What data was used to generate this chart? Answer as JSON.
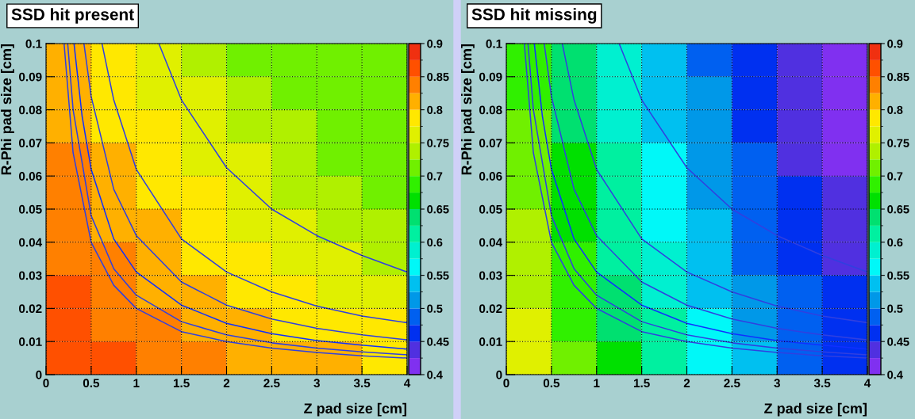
{
  "chart_data": [
    {
      "type": "heatmap",
      "title": "SSD hit present",
      "xlabel": "Z pad size [cm]",
      "ylabel": "R-Phi pad size [cm]",
      "cells": [
        [
          0.81,
          0.79,
          0.76,
          0.74,
          0.71,
          0.71,
          0.71,
          0.71
        ],
        [
          0.81,
          0.79,
          0.76,
          0.76,
          0.74,
          0.71,
          0.71,
          0.71
        ],
        [
          0.81,
          0.79,
          0.79,
          0.76,
          0.74,
          0.74,
          0.71,
          0.71
        ],
        [
          0.84,
          0.81,
          0.79,
          0.76,
          0.76,
          0.74,
          0.71,
          0.71
        ],
        [
          0.84,
          0.81,
          0.79,
          0.79,
          0.76,
          0.74,
          0.74,
          0.71
        ],
        [
          0.84,
          0.81,
          0.81,
          0.79,
          0.76,
          0.76,
          0.74,
          0.74
        ],
        [
          0.84,
          0.84,
          0.81,
          0.79,
          0.79,
          0.76,
          0.76,
          0.74
        ],
        [
          0.86,
          0.84,
          0.81,
          0.81,
          0.79,
          0.79,
          0.76,
          0.76
        ],
        [
          0.86,
          0.84,
          0.84,
          0.81,
          0.81,
          0.79,
          0.79,
          0.79
        ],
        [
          0.86,
          0.86,
          0.84,
          0.84,
          0.81,
          0.81,
          0.81,
          0.79
        ]
      ],
      "colors": [
        "#8030f0",
        "#5030e0",
        "#0030f0",
        "#0060f0",
        "#0098e8",
        "#00c0f0",
        "#00f8f8",
        "#00f0d0",
        "#00f0a0",
        "#00e070",
        "#00e000",
        "#30f000",
        "#70f000",
        "#b0f000",
        "#e0f000",
        "#ffe800",
        "#ffb000",
        "#ff8000",
        "#ff5000",
        "#f03010"
      ],
      "clim": [
        0.4,
        0.9
      ],
      "cticks": [
        0.4,
        0.45,
        0.5,
        0.55,
        0.6,
        0.65,
        0.7,
        0.75,
        0.8,
        0.85,
        0.9
      ],
      "xlim": [
        0,
        4
      ],
      "ylim": [
        0,
        0.1
      ],
      "xticks": [
        0,
        0.5,
        1,
        1.5,
        2,
        2.5,
        3,
        3.5,
        4
      ],
      "yticks": [
        0,
        0.01,
        0.02,
        0.03,
        0.04,
        0.05,
        0.06,
        0.07,
        0.08,
        0.09,
        0.1
      ],
      "grid": true,
      "series": [
        {
          "type": "line",
          "color": "#3040e0",
          "x": [
            0.2,
            0.3,
            0.5,
            0.75,
            1,
            1.5,
            2,
            2.5,
            3,
            3.5,
            4
          ],
          "values": [
            0.1,
            0.067,
            0.04,
            0.027,
            0.02,
            0.013,
            0.01,
            0.008,
            0.0067,
            0.0057,
            0.005
          ]
        },
        {
          "type": "line",
          "color": "#3040e0",
          "x": [
            0.24,
            0.3,
            0.5,
            0.75,
            1,
            1.5,
            2,
            2.5,
            3,
            3.5,
            4
          ],
          "values": [
            0.1,
            0.08,
            0.048,
            0.032,
            0.024,
            0.016,
            0.012,
            0.0096,
            0.008,
            0.0069,
            0.006
          ]
        },
        {
          "type": "line",
          "color": "#1030ff",
          "x": [
            0.31,
            0.4,
            0.5,
            0.75,
            1,
            1.5,
            2,
            2.5,
            3,
            3.5,
            4
          ],
          "values": [
            0.1,
            0.078,
            0.062,
            0.041,
            0.031,
            0.021,
            0.0155,
            0.0124,
            0.0103,
            0.0089,
            0.0077
          ]
        },
        {
          "type": "line",
          "color": "#3040e0",
          "x": [
            0.42,
            0.5,
            0.75,
            1,
            1.5,
            2,
            2.5,
            3,
            3.5,
            4
          ],
          "values": [
            0.1,
            0.084,
            0.056,
            0.042,
            0.028,
            0.021,
            0.0168,
            0.014,
            0.012,
            0.0105
          ]
        },
        {
          "type": "line",
          "color": "#3040e0",
          "x": [
            0.62,
            0.75,
            1,
            1.5,
            2,
            2.5,
            3,
            3.5,
            4
          ],
          "values": [
            0.1,
            0.083,
            0.062,
            0.041,
            0.031,
            0.025,
            0.0207,
            0.0177,
            0.0157
          ]
        },
        {
          "type": "line",
          "color": "#3040e0",
          "x": [
            1.25,
            1.5,
            2,
            2.5,
            3,
            3.5,
            4
          ],
          "values": [
            0.1,
            0.083,
            0.0625,
            0.05,
            0.042,
            0.036,
            0.031
          ]
        }
      ]
    },
    {
      "type": "heatmap",
      "title": "SSD hit missing",
      "xlabel": "Z pad size [cm]",
      "ylabel": "R-Phi pad size [cm]",
      "cells": [
        [
          0.69,
          0.64,
          0.59,
          0.54,
          0.49,
          0.46,
          0.44,
          0.41
        ],
        [
          0.69,
          0.64,
          0.59,
          0.54,
          0.51,
          0.46,
          0.44,
          0.41
        ],
        [
          0.71,
          0.64,
          0.59,
          0.54,
          0.51,
          0.46,
          0.44,
          0.41
        ],
        [
          0.71,
          0.66,
          0.61,
          0.56,
          0.51,
          0.49,
          0.44,
          0.41
        ],
        [
          0.71,
          0.66,
          0.61,
          0.56,
          0.51,
          0.49,
          0.46,
          0.44
        ],
        [
          0.74,
          0.66,
          0.61,
          0.56,
          0.54,
          0.49,
          0.46,
          0.44
        ],
        [
          0.74,
          0.69,
          0.61,
          0.59,
          0.54,
          0.49,
          0.46,
          0.44
        ],
        [
          0.74,
          0.69,
          0.64,
          0.59,
          0.54,
          0.51,
          0.49,
          0.46
        ],
        [
          0.76,
          0.69,
          0.64,
          0.61,
          0.56,
          0.51,
          0.49,
          0.46
        ],
        [
          0.76,
          0.71,
          0.66,
          0.61,
          0.56,
          0.54,
          0.49,
          0.46
        ]
      ],
      "colors": [
        "#8030f0",
        "#5030e0",
        "#0030f0",
        "#0060f0",
        "#0098e8",
        "#00c0f0",
        "#00f8f8",
        "#00f0d0",
        "#00f0a0",
        "#00e070",
        "#00e000",
        "#30f000",
        "#70f000",
        "#b0f000",
        "#e0f000",
        "#ffe800",
        "#ffb000",
        "#ff8000",
        "#ff5000",
        "#f03010"
      ],
      "clim": [
        0.4,
        0.9
      ],
      "cticks": [
        0.4,
        0.45,
        0.5,
        0.55,
        0.6,
        0.65,
        0.7,
        0.75,
        0.8,
        0.85,
        0.9
      ],
      "xlim": [
        0,
        4
      ],
      "ylim": [
        0,
        0.1
      ],
      "xticks": [
        0,
        0.5,
        1,
        1.5,
        2,
        2.5,
        3,
        3.5,
        4
      ],
      "yticks": [
        0,
        0.01,
        0.02,
        0.03,
        0.04,
        0.05,
        0.06,
        0.07,
        0.08,
        0.09,
        0.1
      ],
      "grid": true,
      "series": [
        {
          "type": "line",
          "color": "#3040e0",
          "x": [
            0.2,
            0.3,
            0.5,
            0.75,
            1,
            1.5,
            2,
            2.5,
            3,
            3.5,
            4
          ],
          "values": [
            0.1,
            0.067,
            0.04,
            0.027,
            0.02,
            0.013,
            0.01,
            0.008,
            0.0067,
            0.0057,
            0.005
          ]
        },
        {
          "type": "line",
          "color": "#3040e0",
          "x": [
            0.24,
            0.3,
            0.5,
            0.75,
            1,
            1.5,
            2,
            2.5,
            3,
            3.5,
            4
          ],
          "values": [
            0.1,
            0.08,
            0.048,
            0.032,
            0.024,
            0.016,
            0.012,
            0.0096,
            0.008,
            0.0069,
            0.006
          ]
        },
        {
          "type": "line",
          "color": "#1030ff",
          "x": [
            0.31,
            0.4,
            0.5,
            0.75,
            1,
            1.5,
            2,
            2.5,
            3,
            3.5,
            4
          ],
          "values": [
            0.1,
            0.078,
            0.062,
            0.041,
            0.031,
            0.021,
            0.0155,
            0.0124,
            0.0103,
            0.0089,
            0.0077
          ]
        },
        {
          "type": "line",
          "color": "#3040e0",
          "x": [
            0.42,
            0.5,
            0.75,
            1,
            1.5,
            2,
            2.5,
            3,
            3.5,
            4
          ],
          "values": [
            0.1,
            0.084,
            0.056,
            0.042,
            0.028,
            0.021,
            0.0168,
            0.014,
            0.012,
            0.0105
          ]
        },
        {
          "type": "line",
          "color": "#3040e0",
          "x": [
            0.62,
            0.75,
            1,
            1.5,
            2,
            2.5,
            3,
            3.5,
            4
          ],
          "values": [
            0.1,
            0.083,
            0.062,
            0.041,
            0.031,
            0.025,
            0.0207,
            0.0177,
            0.0157
          ]
        },
        {
          "type": "line",
          "color": "#3040e0",
          "x": [
            1.25,
            1.5,
            2,
            2.5,
            3,
            3.5,
            4
          ],
          "values": [
            0.1,
            0.083,
            0.0625,
            0.05,
            0.042,
            0.036,
            0.031
          ]
        }
      ]
    }
  ]
}
